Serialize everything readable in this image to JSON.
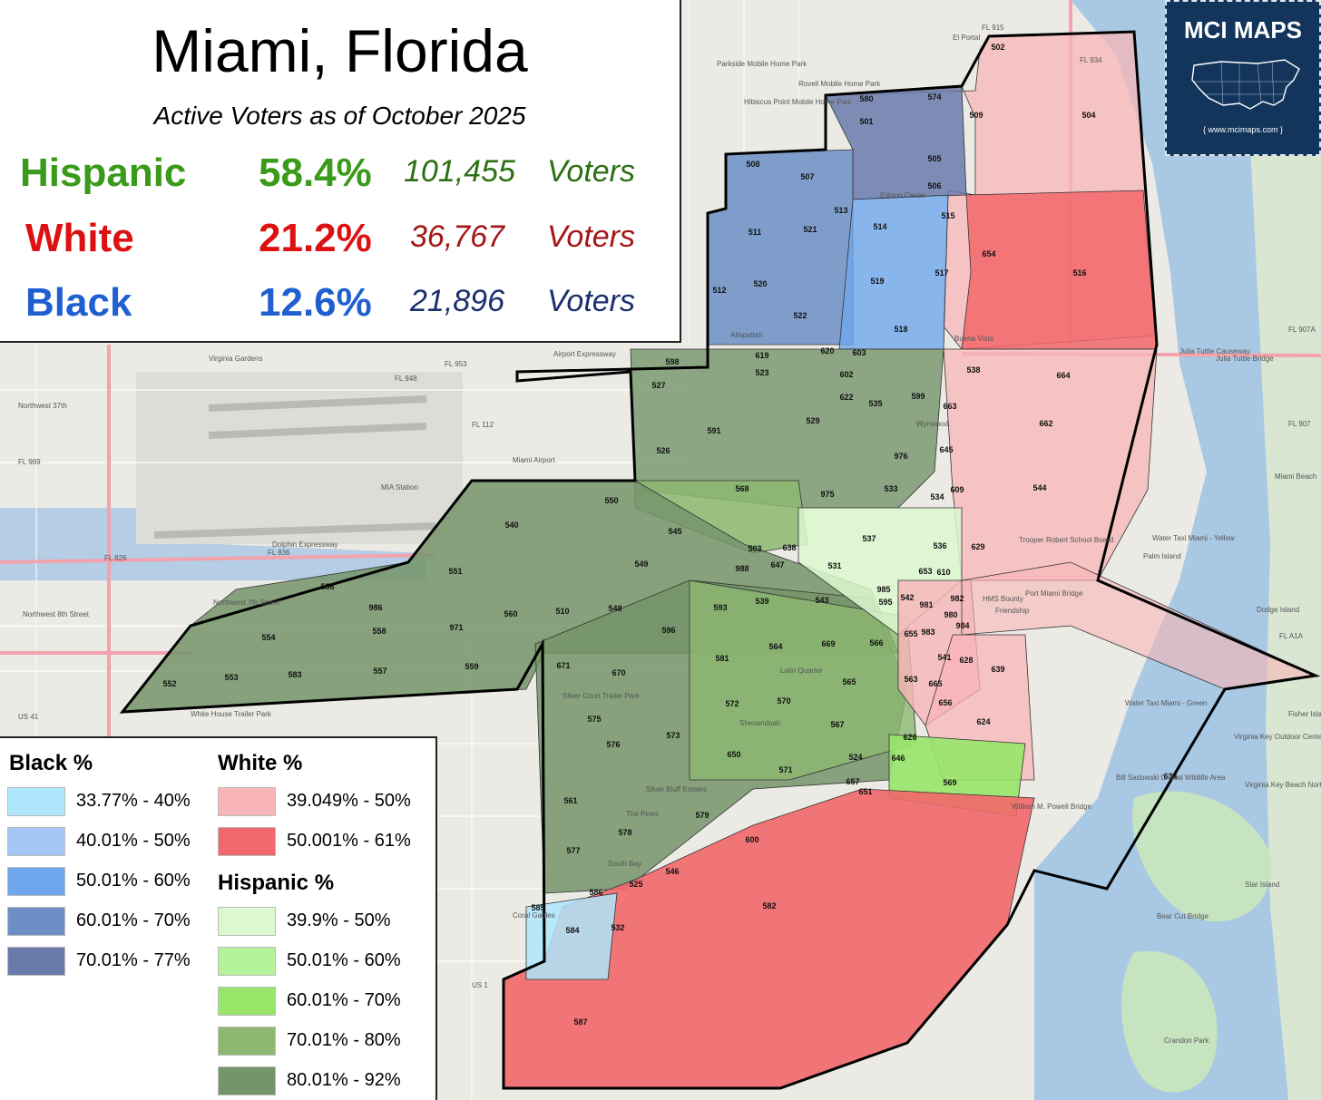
{
  "map": {
    "title": "Miami, Florida",
    "subtitle": "Active Voters as of October 2025",
    "unit_label": "Voters",
    "stats": [
      {
        "group": "Hispanic",
        "percent": "58.4%",
        "count": "101,455",
        "color": "#3a9a1a",
        "count_color": "#2c6e12"
      },
      {
        "group": "White",
        "percent": "21.2%",
        "count": "36,767",
        "color": "#dd1111",
        "count_color": "#a51616"
      },
      {
        "group": "Black",
        "percent": "12.6%",
        "count": "21,896",
        "color": "#1f5fd0",
        "count_color": "#1a2f6e"
      }
    ]
  },
  "logo": {
    "title": "MCI MAPS",
    "url": "{ www.mcimaps.com }"
  },
  "legend": {
    "black": {
      "heading": "Black  %",
      "items": [
        {
          "label": "33.77% - 40%",
          "color": "#aee6fb"
        },
        {
          "label": "40.01% - 50%",
          "color": "#a4c8f6"
        },
        {
          "label": "50.01% - 60%",
          "color": "#6fa7ee"
        },
        {
          "label": "60.01% - 70%",
          "color": "#6c8fc6"
        },
        {
          "label": "70.01% - 77%",
          "color": "#6a7bab"
        }
      ]
    },
    "white": {
      "heading": "White  %",
      "items": [
        {
          "label": "39.049% - 50%",
          "color": "#f8b5b8"
        },
        {
          "label": "50.001% - 61%",
          "color": "#f2676a"
        }
      ]
    },
    "hispanic": {
      "heading": "Hispanic  %",
      "items": [
        {
          "label": "39.9% - 50%",
          "color": "#dcf8cf"
        },
        {
          "label": "50.01% - 60%",
          "color": "#b6f29c"
        },
        {
          "label": "60.01% - 70%",
          "color": "#97e66a"
        },
        {
          "label": "70.01% - 80%",
          "color": "#8cb870"
        },
        {
          "label": "80.01% - 92%",
          "color": "#74946a"
        }
      ]
    }
  },
  "precincts": [
    {
      "id": "502",
      "color": "#aee6fb"
    },
    {
      "id": "504",
      "color": "#f8b5b8"
    },
    {
      "id": "509",
      "color": "#aee6fb"
    },
    {
      "id": "574",
      "color": "#6fa7ee"
    },
    {
      "id": "580",
      "color": "#6a7bab"
    },
    {
      "id": "501",
      "color": "#6a7bab"
    },
    {
      "id": "505",
      "color": "#6a7bab"
    },
    {
      "id": "506",
      "color": "#6a7bab"
    },
    {
      "id": "508",
      "color": "#6a7bab"
    },
    {
      "id": "507",
      "color": "#6a7bab"
    },
    {
      "id": "511",
      "color": "#6c8fc6"
    },
    {
      "id": "521",
      "color": "#6c8fc6"
    },
    {
      "id": "513",
      "color": "#6c8fc6"
    },
    {
      "id": "514",
      "color": "#6fa7ee"
    },
    {
      "id": "515",
      "color": "#a4c8f6"
    },
    {
      "id": "516",
      "color": "#f2676a"
    },
    {
      "id": "654",
      "color": "#f8b5b8"
    },
    {
      "id": "512",
      "color": "#6c8fc6"
    },
    {
      "id": "520",
      "color": "#6c8fc6"
    },
    {
      "id": "519",
      "color": "#6fa7ee"
    },
    {
      "id": "517",
      "color": "#aee6fb"
    },
    {
      "id": "522",
      "color": "#6c8fc6"
    },
    {
      "id": "518",
      "color": "#aee6fb"
    },
    {
      "id": "619",
      "color": "#dcf8cf"
    },
    {
      "id": "620",
      "color": "#f8b5b8"
    },
    {
      "id": "603",
      "color": "#dcf8cf"
    },
    {
      "id": "598",
      "color": "#8cb870"
    },
    {
      "id": "523",
      "color": "#8cb870"
    },
    {
      "id": "527",
      "color": "#74946a"
    },
    {
      "id": "602",
      "color": "#97e66a"
    },
    {
      "id": "535",
      "color": "#b6f29c"
    },
    {
      "id": "599",
      "color": "#f8b5b8"
    },
    {
      "id": "538",
      "color": "#f8b5b8"
    },
    {
      "id": "664",
      "color": "#f8b5b8"
    },
    {
      "id": "622",
      "color": "#97e66a"
    },
    {
      "id": "663",
      "color": "#dcf8cf"
    },
    {
      "id": "529",
      "color": "#8cb870"
    },
    {
      "id": "591",
      "color": "#74946a"
    },
    {
      "id": "662",
      "color": "#f8b5b8"
    },
    {
      "id": "568",
      "color": "#8cb870"
    },
    {
      "id": "526",
      "color": "#74946a"
    },
    {
      "id": "976",
      "color": "#6fa7ee"
    },
    {
      "id": "645",
      "color": "#dcf8cf"
    },
    {
      "id": "975",
      "color": "#a4c8f6"
    },
    {
      "id": "533",
      "color": "#6c8fc6"
    },
    {
      "id": "534",
      "color": "#b6f29c"
    },
    {
      "id": "609",
      "color": "#b6f29c"
    },
    {
      "id": "544",
      "color": "#f8b5b8"
    },
    {
      "id": "550",
      "color": "#74946a"
    },
    {
      "id": "540",
      "color": "#74946a"
    },
    {
      "id": "545",
      "color": "#74946a"
    },
    {
      "id": "537",
      "color": "#dcf8cf"
    },
    {
      "id": "536",
      "color": "#b6f29c"
    },
    {
      "id": "629",
      "color": "#a4c8f6"
    },
    {
      "id": "503",
      "color": "#b6f29c"
    },
    {
      "id": "638",
      "color": "#dcf8cf"
    },
    {
      "id": "988",
      "color": "#8cb870"
    },
    {
      "id": "647",
      "color": "#8cb870"
    },
    {
      "id": "531",
      "color": "#b6f29c"
    },
    {
      "id": "551",
      "color": "#74946a"
    },
    {
      "id": "549",
      "color": "#74946a"
    },
    {
      "id": "653",
      "color": "#f2676a"
    },
    {
      "id": "610",
      "color": "#f8b5b8"
    },
    {
      "id": "556",
      "color": "#74946a"
    },
    {
      "id": "593",
      "color": "#8cb870"
    },
    {
      "id": "539",
      "color": "#8cb870"
    },
    {
      "id": "543",
      "color": "#8cb870"
    },
    {
      "id": "985",
      "color": "#dcf8cf"
    },
    {
      "id": "595",
      "color": "#dcf8cf"
    },
    {
      "id": "542",
      "color": "#f8b5b8"
    },
    {
      "id": "981",
      "color": "#f8b5b8"
    },
    {
      "id": "980",
      "color": "#f2676a"
    },
    {
      "id": "982",
      "color": "#f8b5b8"
    },
    {
      "id": "986",
      "color": "#74946a"
    },
    {
      "id": "560",
      "color": "#74946a"
    },
    {
      "id": "510",
      "color": "#74946a"
    },
    {
      "id": "548",
      "color": "#74946a"
    },
    {
      "id": "558",
      "color": "#74946a"
    },
    {
      "id": "971",
      "color": "#74946a"
    },
    {
      "id": "596",
      "color": "#8cb870"
    },
    {
      "id": "564",
      "color": "#8cb870"
    },
    {
      "id": "669",
      "color": "#8cb870"
    },
    {
      "id": "566",
      "color": "#97e66a"
    },
    {
      "id": "655",
      "color": "#dcf8cf"
    },
    {
      "id": "983",
      "color": "#dcf8cf"
    },
    {
      "id": "984",
      "color": "#f8b5b8"
    },
    {
      "id": "554",
      "color": "#74946a"
    },
    {
      "id": "581",
      "color": "#8cb870"
    },
    {
      "id": "541",
      "color": "#f8b5b8"
    },
    {
      "id": "628",
      "color": "#f2676a"
    },
    {
      "id": "671",
      "color": "#8cb870"
    },
    {
      "id": "583",
      "color": "#74946a"
    },
    {
      "id": "557",
      "color": "#74946a"
    },
    {
      "id": "559",
      "color": "#74946a"
    },
    {
      "id": "670",
      "color": "#8cb870"
    },
    {
      "id": "639",
      "color": "#dcf8cf"
    },
    {
      "id": "552",
      "color": "#74946a"
    },
    {
      "id": "553",
      "color": "#74946a"
    },
    {
      "id": "565",
      "color": "#97e66a"
    },
    {
      "id": "563",
      "color": "#97e66a"
    },
    {
      "id": "665",
      "color": "#f2676a"
    },
    {
      "id": "656",
      "color": "#f2676a"
    },
    {
      "id": "572",
      "color": "#8cb870"
    },
    {
      "id": "570",
      "color": "#8cb870"
    },
    {
      "id": "575",
      "color": "#74946a"
    },
    {
      "id": "567",
      "color": "#97e66a"
    },
    {
      "id": "624",
      "color": "#f8b5b8"
    },
    {
      "id": "576",
      "color": "#8cb870"
    },
    {
      "id": "573",
      "color": "#8cb870"
    },
    {
      "id": "626",
      "color": "#dcf8cf"
    },
    {
      "id": "650",
      "color": "#8cb870"
    },
    {
      "id": "646",
      "color": "#dcf8cf"
    },
    {
      "id": "524",
      "color": "#b6f29c"
    },
    {
      "id": "571",
      "color": "#97e66a"
    },
    {
      "id": "657",
      "color": "#dcf8cf"
    },
    {
      "id": "651",
      "color": "#f2676a"
    },
    {
      "id": "569",
      "color": "#97e66a"
    },
    {
      "id": "634",
      "color": "#f8b5b8"
    },
    {
      "id": "561",
      "color": "#8cb870"
    },
    {
      "id": "579",
      "color": "#8cb870"
    },
    {
      "id": "578",
      "color": "#8cb870"
    },
    {
      "id": "600",
      "color": "#f2676a"
    },
    {
      "id": "577",
      "color": "#8cb870"
    },
    {
      "id": "546",
      "color": "#f2676a"
    },
    {
      "id": "525",
      "color": "#f8b5b8"
    },
    {
      "id": "586",
      "color": "#aee6fb"
    },
    {
      "id": "582",
      "color": "#f2676a"
    },
    {
      "id": "585",
      "color": "#f8b5b8"
    },
    {
      "id": "584",
      "color": "#aee6fb"
    },
    {
      "id": "532",
      "color": "#f2676a"
    },
    {
      "id": "587",
      "color": "#f2676a"
    }
  ],
  "basemap_labels": [
    "Virginia Gardens",
    "MIA Station",
    "Miami Airport",
    "Wynwood",
    "Edison Center",
    "Allapattah",
    "Latin Quarter",
    "Shenandoah",
    "Silver Court Trailer Park",
    "Silver Bluff Estates",
    "The Pines",
    "South Bay",
    "Coral Gables",
    "Bill Sadowski Critical Wildlife Area",
    "Virginia Key Outdoor Center",
    "Virginia Key Beach North Point Park",
    "Crandon Park",
    "Star Island",
    "Fisher Island",
    "Dodge Island",
    "Miami Beach",
    "Julia Tuttle Bridge",
    "William M. Powell Bridge",
    "Bear Cut Bridge",
    "Airport Expressway",
    "Dolphin Expressway",
    "El Portal",
    "Parkside Mobile Home Park",
    "Rovell Mobile Home Park",
    "Hibiscus Point Mobile Home Park",
    "Buena Vista",
    "Trooper Robert School Board",
    "Palm Island",
    "Port Miami Bridge",
    "Friendship",
    "HMS Bounty",
    "Northwest 7th Street",
    "Northwest 37th",
    "Northwest 8th Street",
    "US 41",
    "US 1",
    "FL 836",
    "FL 112",
    "FL 953",
    "FL 934",
    "FL 907A",
    "FL 907",
    "FL 969",
    "FL 826",
    "FL 948",
    "FL 915",
    "FL A1A",
    "Water Taxi Miami - Yellow",
    "Water Taxi Miami - Green",
    "Julia Tuttle Causeway",
    "White House Trailer Park"
  ]
}
